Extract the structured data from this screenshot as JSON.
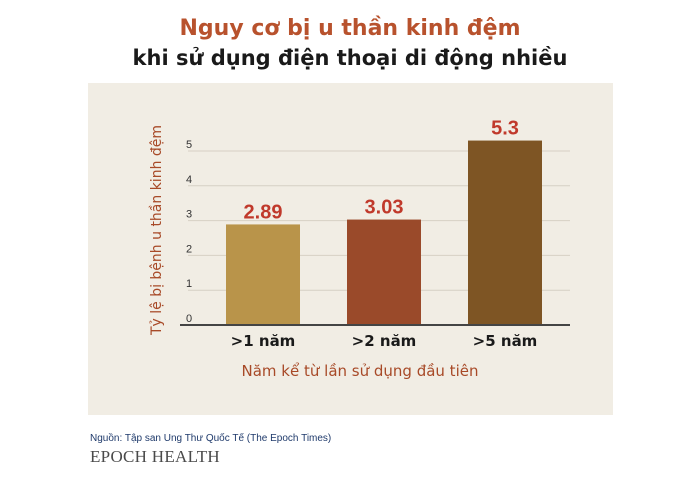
{
  "title_line1": "Nguy cơ bị u thần kinh đệm",
  "title_line2": "khi sử dụng điện thoại di động nhiều",
  "source_note": "Nguồn: Tập san Ung Thư Quốc Tế (The Epoch Times)",
  "brand_name": "EPOCH HEALTH",
  "chart_data": {
    "type": "bar",
    "categories": [
      ">1 năm",
      ">2 năm",
      ">5 năm"
    ],
    "values": [
      2.89,
      3.03,
      5.3
    ],
    "value_labels": [
      "2.89",
      "3.03",
      "5.3"
    ],
    "bar_colors": [
      "#b9944a",
      "#9a4a2a",
      "#7e5524"
    ],
    "xlabel": "Năm kể từ lần sử dụng đầu tiên",
    "ylabel": "Tỷ lệ bị bệnh u thần kinh đệm",
    "ylim": [
      0,
      5.5
    ],
    "yticks": [
      0,
      1,
      2,
      3,
      4,
      5
    ],
    "grid": true,
    "colors": {
      "value_label": "#c0392b",
      "axis_label": "#a84a28",
      "panel": "#f1ede4"
    }
  }
}
